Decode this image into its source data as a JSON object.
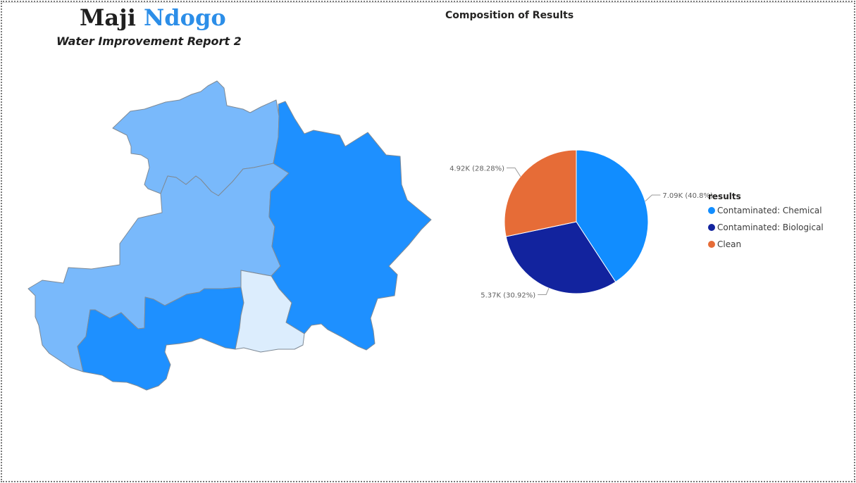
{
  "report": {
    "title_part1": "Maji",
    "title_part2": "Ndogo",
    "subtitle": "Water Improvement Report 2"
  },
  "colors": {
    "title_accent": "#2c8ee8",
    "map_light": "#79b9fb",
    "map_dark": "#1e90ff",
    "map_pale": "#dcedfd",
    "map_border": "#7f8a95"
  },
  "map": {
    "regions": [
      {
        "shade": "light"
      },
      {
        "shade": "light"
      },
      {
        "shade": "dark"
      },
      {
        "shade": "dark"
      },
      {
        "shade": "pale"
      }
    ]
  },
  "chart_data": {
    "type": "pie",
    "title": "Composition of Results",
    "legend_title": "results",
    "legend_position": "right",
    "slices": [
      {
        "label": "Contaminated: Chemical",
        "value": 7090,
        "display": "7.09K (40.8%)",
        "color": "#118dff"
      },
      {
        "label": "Contaminated: Biological",
        "value": 5370,
        "display": "5.37K (30.92%)",
        "color": "#12239e"
      },
      {
        "label": "Clean",
        "value": 4920,
        "display": "4.92K (28.28%)",
        "color": "#e66c37"
      }
    ]
  }
}
